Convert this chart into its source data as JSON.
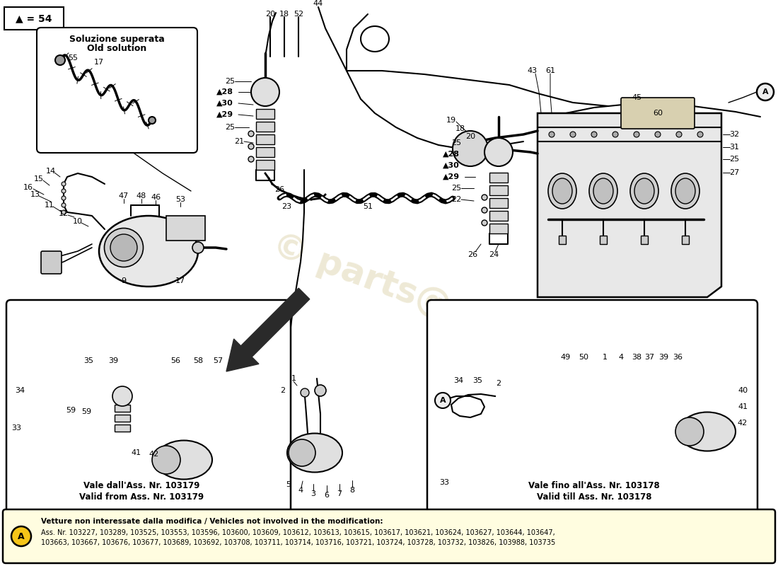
{
  "background_color": "#ffffff",
  "watermark_color": "#c8b878",
  "watermark_alpha": 0.3,
  "triangle_legend": "▲ = 54",
  "note_text_bold": "Vetture non interessate dalla modifica / Vehicles not involved in the modification:",
  "note_line1": "Ass. Nr. 103227, 103289, 103525, 103553, 103596, 103600, 103609, 103612, 103613, 103615, 103617, 103621, 103624, 103627, 103644, 103647,",
  "note_line2": "103663, 103667, 103676, 103677, 103689, 103692, 103708, 103711, 103714, 103716, 103721, 103724, 103728, 103732, 103826, 103988, 103735",
  "circle_A_label": "A",
  "old_sol_it": "Soluzione superata",
  "old_sol_en": "Old solution",
  "bl_it": "Vale dall'Ass. Nr. 103179",
  "bl_en": "Valid from Ass. Nr. 103179",
  "br_it": "Vale fino all'Ass. Nr. 103178",
  "br_en": "Valid till Ass. Nr. 103178"
}
